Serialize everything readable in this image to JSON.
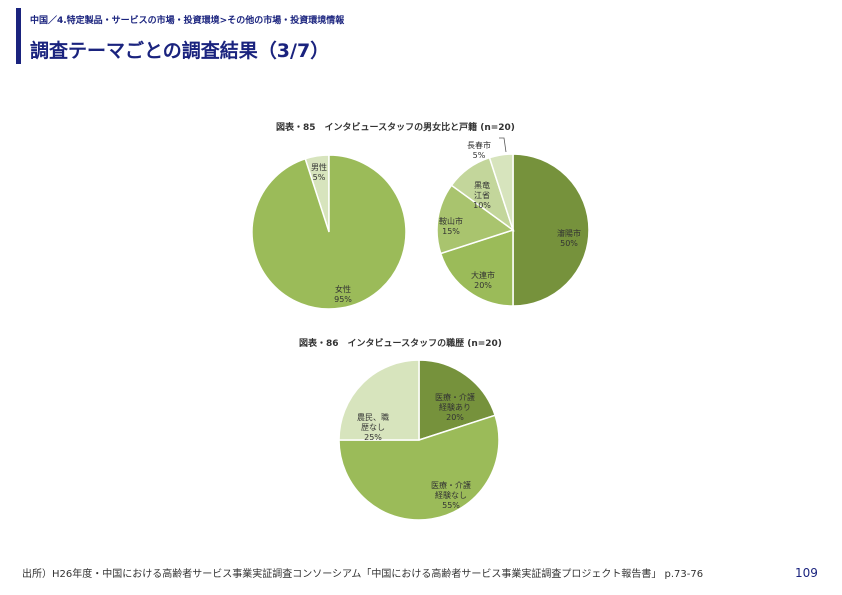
{
  "header": {
    "breadcrumb": "中国／4.特定製品・サービスの市場・投資環境>その他の市場・投資環境情報",
    "title": "調査テーマごとの調査結果（3/7）"
  },
  "colors": {
    "accent": "#1a237e",
    "dark_green": "#76923c",
    "mid_green": "#9bbb59",
    "light_green": "#c3d69b",
    "pale_green": "#d7e4bd"
  },
  "chart_data": [
    {
      "type": "pie",
      "title": "図表・85　インタビュースタッフの男女比と戸籍 (n=20)",
      "slices": [
        {
          "label": "男性",
          "value": 5,
          "value_label": "5%",
          "color": "#d7e4bd"
        },
        {
          "label": "女性",
          "value": 95,
          "value_label": "95%",
          "color": "#9bbb59"
        }
      ]
    },
    {
      "type": "pie",
      "title": "",
      "slices": [
        {
          "label": "瀋陽市",
          "value": 50,
          "value_label": "50%",
          "color": "#76923c"
        },
        {
          "label": "大連市",
          "value": 20,
          "value_label": "20%",
          "color": "#9bbb59"
        },
        {
          "label": "鞍山市",
          "value": 15,
          "value_label": "15%",
          "color": "#a9c46e"
        },
        {
          "label": "黒竜江省",
          "value": 10,
          "value_label": "10%",
          "color": "#c3d69b"
        },
        {
          "label": "長春市",
          "value": 5,
          "value_label": "5%",
          "color": "#d7e4bd"
        }
      ]
    },
    {
      "type": "pie",
      "title": "図表・86　インタビュースタッフの職歴 (n=20)",
      "slices": [
        {
          "label": "医療・介護経験あり",
          "value": 20,
          "value_label": "20%",
          "color": "#76923c"
        },
        {
          "label": "医療・介護経験なし",
          "value": 55,
          "value_label": "55%",
          "color": "#9bbb59"
        },
        {
          "label": "農民、職歴なし",
          "value": 25,
          "value_label": "25%",
          "color": "#d7e4bd"
        }
      ]
    }
  ],
  "footer": {
    "source": "出所）H26年度・中国における高齢者サービス事業実証調査コンソーシアム「中国における高齢者サービス事業実証調査プロジェクト報告書」 p.73-76",
    "page_number": "109"
  }
}
